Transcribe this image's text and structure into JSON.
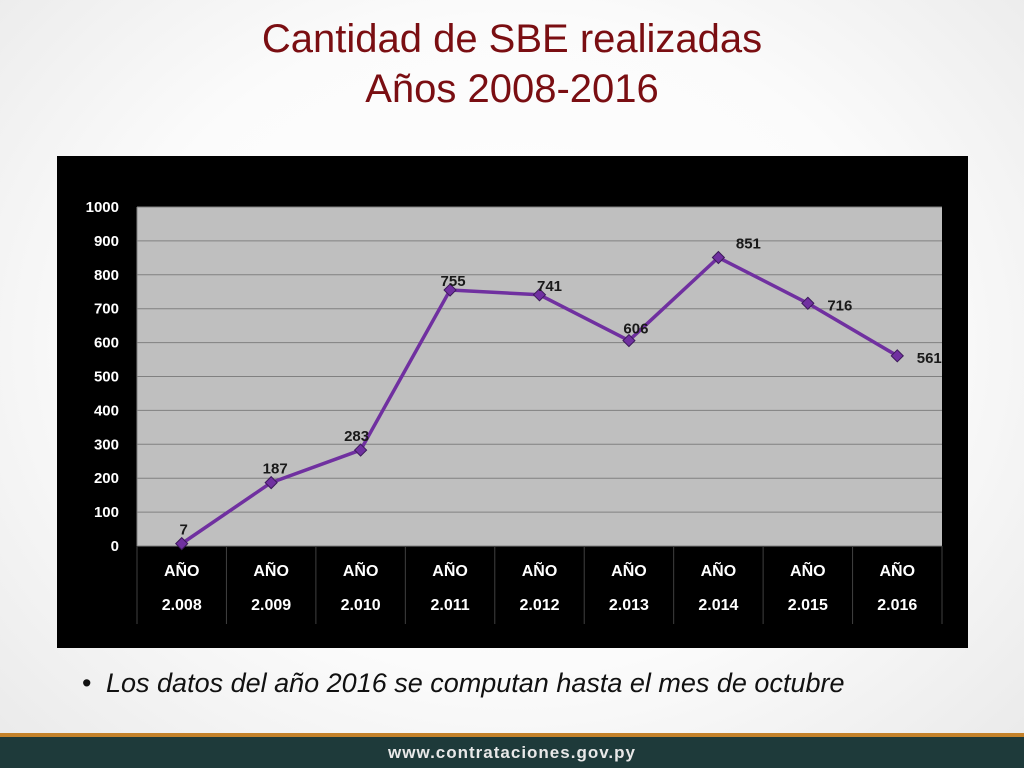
{
  "slide": {
    "title_line1": "Cantidad de SBE realizadas",
    "title_line2": "Años 2008-2016",
    "note": "Los datos del año 2016 se computan hasta el mes de octubre",
    "bullet": "•",
    "footer_url": "www.contrataciones.gov.py"
  },
  "colors": {
    "line": "#7030a0",
    "marker": "#7030a0",
    "plot_bg": "#bfbfbf",
    "chart_bg": "#000000",
    "title": "#7a0e12"
  },
  "chart_data": {
    "type": "line",
    "categories": [
      [
        "AÑO",
        "2.008"
      ],
      [
        "AÑO",
        "2.009"
      ],
      [
        "AÑO",
        "2.010"
      ],
      [
        "AÑO",
        "2.011"
      ],
      [
        "AÑO",
        "2.012"
      ],
      [
        "AÑO",
        "2.013"
      ],
      [
        "AÑO",
        "2.014"
      ],
      [
        "AÑO",
        "2.015"
      ],
      [
        "AÑO",
        "2.016"
      ]
    ],
    "values": [
      7,
      187,
      283,
      755,
      741,
      606,
      851,
      716,
      561
    ],
    "data_labels": [
      "7",
      "187",
      "283",
      "755",
      "741",
      "606",
      "851",
      "716",
      "561"
    ],
    "yticks": [
      "0",
      "100",
      "200",
      "300",
      "400",
      "500",
      "600",
      "700",
      "800",
      "900",
      "1000"
    ],
    "ylim": [
      0,
      1000
    ],
    "grid": true,
    "legend": "none"
  }
}
